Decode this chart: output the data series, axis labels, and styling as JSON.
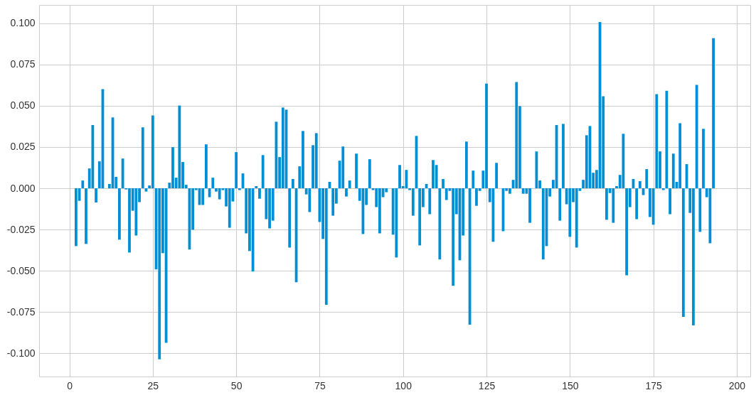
{
  "chart_data": {
    "type": "bar",
    "color": "#008fd5",
    "grid": true,
    "xlim": [
      -8,
      203
    ],
    "xticks": [
      0,
      25,
      50,
      75,
      100,
      125,
      150,
      175,
      200
    ],
    "ylim": [
      -0.114,
      0.111
    ],
    "yticks": [
      {
        "value": -0.1,
        "label": "-0.100"
      },
      {
        "value": -0.075,
        "label": "-0.075"
      },
      {
        "value": -0.05,
        "label": "-0.050"
      },
      {
        "value": -0.025,
        "label": "-0.025"
      },
      {
        "value": 0,
        "label": "0.000"
      },
      {
        "value": 0.025,
        "label": "0.025"
      },
      {
        "value": 0.05,
        "label": "0.050"
      },
      {
        "value": 0.075,
        "label": "0.075"
      },
      {
        "value": 0.1,
        "label": "0.100"
      }
    ],
    "x": [
      2,
      3,
      4,
      5,
      6,
      7,
      8,
      9,
      10,
      11,
      12,
      13,
      14,
      15,
      16,
      17,
      18,
      19,
      20,
      21,
      22,
      23,
      24,
      25,
      26,
      27,
      28,
      29,
      30,
      31,
      32,
      33,
      34,
      35,
      36,
      37,
      38,
      39,
      40,
      41,
      42,
      43,
      44,
      45,
      46,
      47,
      48,
      49,
      50,
      51,
      52,
      53,
      54,
      55,
      56,
      57,
      58,
      59,
      60,
      61,
      62,
      63,
      64,
      65,
      66,
      67,
      68,
      69,
      70,
      71,
      72,
      73,
      74,
      75,
      76,
      77,
      78,
      79,
      80,
      81,
      82,
      83,
      84,
      85,
      86,
      87,
      88,
      89,
      90,
      91,
      92,
      93,
      94,
      95,
      96,
      97,
      98,
      99,
      100,
      101,
      102,
      103,
      104,
      105,
      106,
      107,
      108,
      109,
      110,
      111,
      112,
      113,
      114,
      115,
      116,
      117,
      118,
      119,
      120,
      121,
      122,
      123,
      124,
      125,
      126,
      127,
      128,
      129,
      130,
      131,
      132,
      133,
      134,
      135,
      136,
      137,
      138,
      139,
      140,
      141,
      142,
      143,
      144,
      145,
      146,
      147,
      148,
      149,
      150,
      151,
      152,
      153,
      154,
      155,
      156,
      157,
      158,
      159,
      160,
      161,
      162,
      163,
      164,
      165,
      166,
      167,
      168,
      169,
      170,
      171,
      172,
      173,
      174,
      175,
      176,
      177,
      178,
      179,
      180,
      181,
      182,
      183,
      184,
      185,
      186,
      187,
      188,
      189,
      190,
      191,
      192,
      193
    ],
    "values": [
      -0.035,
      -0.0076,
      0.0047,
      -0.0337,
      0.012,
      0.0383,
      -0.0086,
      0.0163,
      0.06,
      null,
      0.0026,
      0.0429,
      0.0069,
      -0.0311,
      0.018,
      -0.0007,
      -0.0389,
      -0.0136,
      -0.0286,
      -0.0084,
      0.0369,
      -0.002,
      0.0017,
      0.0441,
      -0.0491,
      -0.1036,
      -0.0393,
      -0.0936,
      0.0034,
      0.0249,
      0.0064,
      0.0501,
      0.0159,
      0.0021,
      -0.0371,
      -0.0251,
      -0.0011,
      -0.0101,
      -0.0101,
      0.0266,
      -0.0054,
      0.0064,
      -0.002,
      -0.0067,
      -0.0011,
      -0.011,
      -0.0239,
      -0.008,
      0.0219,
      -0.0011,
      0.009,
      -0.0273,
      -0.038,
      -0.0504,
      0.0013,
      -0.0063,
      0.0201,
      -0.0187,
      -0.0243,
      -0.0196,
      0.0403,
      0.0189,
      0.0489,
      0.0476,
      -0.0359,
      0.0056,
      -0.0569,
      0.0133,
      0.0347,
      -0.0037,
      -0.0144,
      0.0261,
      0.0334,
      -0.0204,
      -0.0307,
      -0.0706,
      0.0039,
      -0.0166,
      -0.0093,
      0.0167,
      0.0253,
      -0.005,
      0.0047,
      null,
      0.021,
      -0.0076,
      -0.0277,
      -0.0101,
      0.0176,
      -0.0011,
      -0.0114,
      -0.0273,
      -0.0054,
      -0.0024,
      null,
      -0.0281,
      -0.0419,
      0.0141,
      0.0013,
      0.0111,
      -0.0011,
      -0.0166,
      0.0317,
      -0.0346,
      -0.0114,
      0.0026,
      -0.0157,
      0.0171,
      0.0141,
      -0.0431,
      0.0056,
      -0.0071,
      -0.0016,
      -0.059,
      -0.0157,
      -0.0436,
      -0.0286,
      0.0283,
      -0.0826,
      0.0107,
      -0.0106,
      -0.0016,
      0.0107,
      0.0634,
      -0.0084,
      -0.0324,
      0.0154,
      null,
      -0.026,
      -0.0016,
      -0.0033,
      0.0051,
      0.0643,
      0.0497,
      -0.0033,
      -0.0033,
      -0.0209,
      null,
      0.0223,
      0.0047,
      -0.0431,
      -0.035,
      -0.005,
      0.0051,
      0.0383,
      -0.0196,
      0.039,
      -0.0097,
      -0.0294,
      -0.0084,
      -0.0359,
      -0.0016,
      0.0051,
      0.0321,
      0.0377,
      0.0094,
      0.0111,
      0.1007,
      0.0557,
      -0.0191,
      -0.0029,
      -0.0209,
      0.0013,
      0.0081,
      0.033,
      -0.0527,
      -0.0114,
      0.0056,
      -0.0187,
      0.0043,
      -0.0041,
      0.0116,
      -0.0174,
      -0.0221,
      0.057,
      0.0223,
      -0.0011,
      0.0591,
      -0.0157,
      0.021,
      0.0039,
      0.0394,
      -0.0779,
      0.0146,
      -0.0149,
      -0.083,
      0.0626,
      -0.0264,
      0.036,
      -0.0054,
      -0.0333,
      0.0909
    ]
  }
}
